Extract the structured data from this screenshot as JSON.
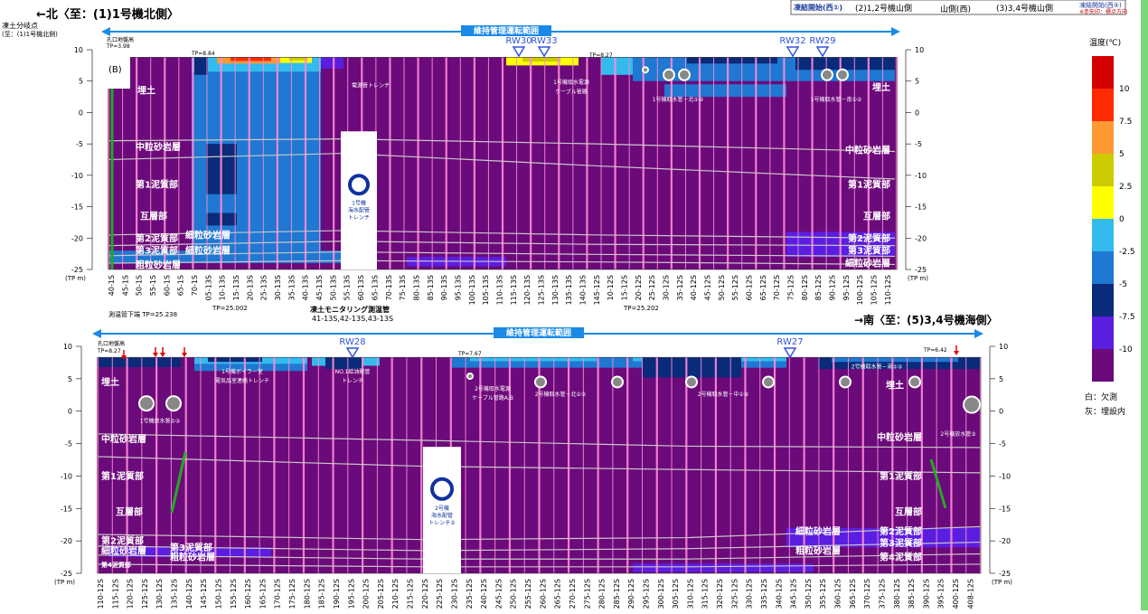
{
  "header": {
    "north_label": "←北〈至：(1)1号機北側〉",
    "south_label": "→南〈至：(5)3,4号機海側〉",
    "branch_point": "凍土分岐点",
    "branch_point_sub": "(至：(1)1号機北側)",
    "b_marker": "(B)",
    "range_label": "維持管理運転範囲",
    "top_right": {
      "start_west": "凍結開始(西①)",
      "units12": "(2)1,2号機山側",
      "mountain": "山側(西)",
      "units34": "(3)3,4号機山側",
      "start_west5": "凍結開始(西⑤)",
      "note": "※赤矢印：標点方向"
    }
  },
  "panel_top": {
    "rw_markers": [
      "RW30",
      "RW33",
      "RW32",
      "RW29"
    ],
    "tp_labels": [
      "孔口地盤高",
      "TP=3.98",
      "TP=8.84",
      "TP=8.27"
    ],
    "strata": [
      "埋土",
      "中粒砂岩層",
      "第1泥質部",
      "互層部",
      "第2泥質部",
      "第3泥質部",
      "細粒砂岩層",
      "粗粒砂岩層"
    ],
    "strata_right": [
      "埋土",
      "中粒砂岩層",
      "第1泥質部",
      "互層部",
      "第2泥質部",
      "第3泥質部",
      "細粒砂岩層"
    ],
    "structures": [
      "電源管トレンチ",
      "1号機取水電源ケーブル管路",
      "1号機取水管－北①②",
      "1号機取水管－南①②",
      "1号機海水配管トレンチ"
    ],
    "x_ticks": [
      "40-1S",
      "45-1S",
      "50-1S",
      "55-1S",
      "60-1S",
      "65-1S",
      "70-1S",
      "05-13S",
      "10-13S",
      "15-13S",
      "20-13S",
      "25-13S",
      "30-13S",
      "35-13S",
      "40-13S",
      "45-13S",
      "50-13S",
      "55-13S",
      "60-13S",
      "65-13S",
      "70-13S",
      "75-13S",
      "80-13S",
      "85-13S",
      "90-13S",
      "95-13S",
      "100-13S",
      "105-13S",
      "110-13S",
      "115-13S",
      "120-13S",
      "125-13S",
      "130-13S",
      "135-13S",
      "140-13S",
      "145-12S",
      "10-12S",
      "15-12S",
      "20-12S",
      "25-12S",
      "30-12S",
      "35-12S",
      "40-12S",
      "45-12S",
      "50-12S",
      "55-12S",
      "60-12S",
      "65-12S",
      "70-12S",
      "75-12S",
      "80-12S",
      "85-12S",
      "90-12S",
      "95-12S",
      "100-12S",
      "105-12S",
      "110-12S"
    ],
    "bottom_notes": [
      "測温管下端 TP=25.238",
      "TP=25.002",
      "凍土モニタリング測温管",
      "41-13S,42-13S,43-13S",
      "TP=25.202"
    ]
  },
  "panel_bottom": {
    "rw_markers": [
      "RW28",
      "RW27"
    ],
    "tp_labels": [
      "孔口地盤高",
      "TP=8.27",
      "TP=7.67",
      "TP=6.42"
    ],
    "strata": [
      "埋土",
      "中粒砂岩層",
      "第1泥質部",
      "互層部",
      "第2泥質部",
      "第3泥質部",
      "細粒砂岩層",
      "粗粒砂岩層",
      "第4泥質部"
    ],
    "strata_right": [
      "埋土",
      "中粒砂岩層",
      "第1泥質部",
      "互層部",
      "細粒砂岩層",
      "第2泥質部",
      "第3泥質部",
      "粗粒砂岩層",
      "第4泥質部"
    ],
    "structures": [
      "1号機ボイラー室電気品室連絡トレンチ",
      "NO.1給油配管トレンチ",
      "2号機取水電源ケーブル管路A,B",
      "2号機取水管－北①②",
      "2号機取水管－中①②",
      "2号機取水管－南①②",
      "1号機放水管①②",
      "2号機放水管③",
      "2号機海水配管トレンチ②"
    ],
    "x_ticks": [
      "110-12S",
      "115-12S",
      "120-12S",
      "125-12S",
      "130-12S",
      "135-12S",
      "140-12S",
      "145-12S",
      "150-12S",
      "155-12S",
      "160-12S",
      "165-12S",
      "170-12S",
      "175-12S",
      "180-12S",
      "185-12S",
      "190-12S",
      "195-12S",
      "200-12S",
      "205-12S",
      "210-12S",
      "215-12S",
      "220-12S",
      "225-12S",
      "230-12S",
      "235-12S",
      "240-12S",
      "245-12S",
      "250-12S",
      "255-12S",
      "260-12S",
      "265-12S",
      "270-12S",
      "275-12S",
      "280-12S",
      "285-12S",
      "290-12S",
      "295-12S",
      "300-12S",
      "305-12S",
      "310-12S",
      "315-12S",
      "320-12S",
      "325-12S",
      "330-12S",
      "335-12S",
      "340-12S",
      "345-12S",
      "350-12S",
      "355-12S",
      "360-12S",
      "365-12S",
      "370-12S",
      "375-12S",
      "380-12S",
      "385-12S",
      "390-12S",
      "395-12S",
      "400-12S",
      "408-12S"
    ]
  },
  "axis": {
    "unit": "(TP m)",
    "ticks": [
      "10",
      "5",
      "0",
      "-5",
      "-10",
      "-15",
      "-20",
      "-25"
    ]
  },
  "legend": {
    "title": "温度(℃)",
    "labels": [
      "10",
      "7.5",
      "5",
      "2.5",
      "0",
      "-2.5",
      "-5",
      "-7.5",
      "-10"
    ],
    "colors": [
      "#d40000",
      "#ff2a00",
      "#ff9933",
      "#cccc00",
      "#ffff00",
      "#33bbee",
      "#1f78d1",
      "#0a2a7a",
      "#5a1ee0",
      "#6b0a7a"
    ],
    "note_white": "白：欠測",
    "note_gray": "灰：埋設内"
  },
  "chart_data": {
    "type": "heatmap",
    "ylim": [
      -25,
      10
    ],
    "colorbar_stops": [
      10,
      7.5,
      5,
      2.5,
      0,
      -2.5,
      -5,
      -7.5,
      -10
    ],
    "panels": [
      "top",
      "bottom"
    ]
  }
}
